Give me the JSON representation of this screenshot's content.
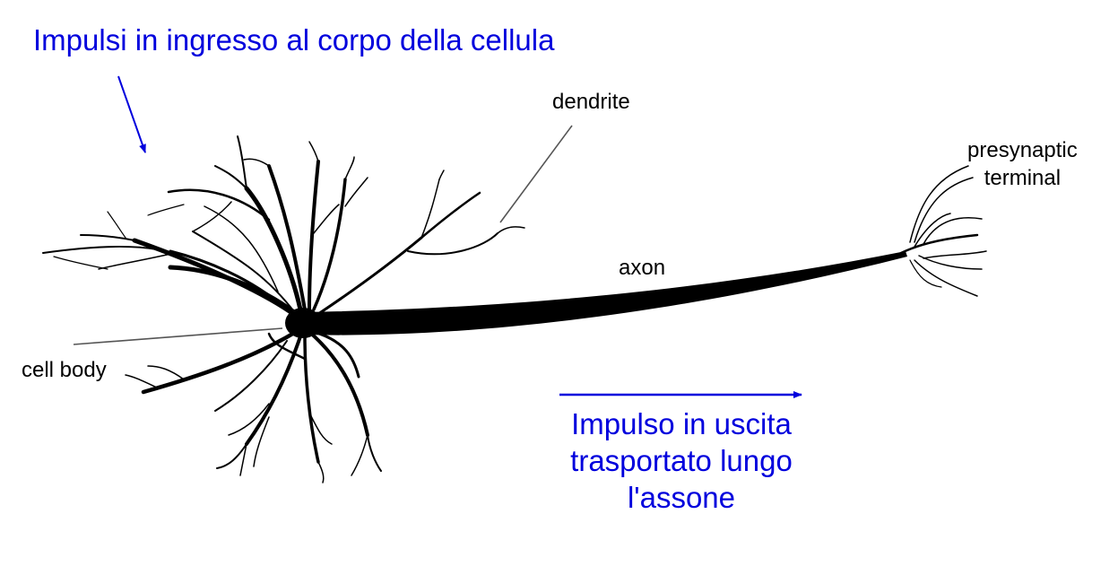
{
  "diagram": {
    "annotations": {
      "input_impulses": "Impulsi in ingresso al corpo della cellula",
      "output_impulse_line1": "Impulso in uscita",
      "output_impulse_line2": "trasportato lungo",
      "output_impulse_line3": "l'assone"
    },
    "labels": {
      "dendrite": "dendrite",
      "presynaptic_line1": "presynaptic",
      "presynaptic_line2": "terminal",
      "axon": "axon",
      "cell_body": "cell body"
    },
    "colors": {
      "annotation": "#0000dd",
      "arrow": "#0000dd",
      "neuron": "#000000",
      "leader_line": "#555555"
    }
  }
}
